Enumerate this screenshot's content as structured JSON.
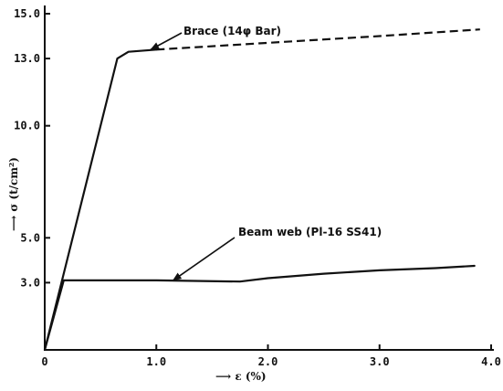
{
  "chart_data": {
    "type": "line",
    "title": "",
    "xlabel": "⟶ ε (%)",
    "ylabel": "⟶ σ (t/cm²)",
    "xlim": [
      0,
      4.0
    ],
    "ylim": [
      0,
      15.0
    ],
    "x_ticks": [
      0,
      1.0,
      2.0,
      3.0,
      4.0
    ],
    "x_tick_labels": [
      "0",
      "1.0",
      "2.0",
      "3.0",
      "4.0"
    ],
    "y_ticks": [
      3.0,
      5.0,
      10.0,
      13.0,
      15.0
    ],
    "y_tick_labels": [
      "3.0",
      "5.0",
      "10.0",
      "13.0",
      "15.0"
    ],
    "grid": false,
    "legend": "none",
    "series": [
      {
        "name": "Brace (14φ Bar)",
        "segments": [
          {
            "style": "solid",
            "points": [
              [
                0,
                0
              ],
              [
                0.65,
                13.0
              ],
              [
                0.75,
                13.3
              ],
              [
                1.0,
                13.4
              ]
            ]
          },
          {
            "style": "dashed",
            "points": [
              [
                1.0,
                13.4
              ],
              [
                2.0,
                13.7
              ],
              [
                3.0,
                14.0
              ],
              [
                3.9,
                14.3
              ]
            ]
          }
        ]
      },
      {
        "name": "Beam web (Pl-16 SS41)",
        "segments": [
          {
            "style": "solid",
            "points": [
              [
                0,
                0
              ],
              [
                0.17,
                3.1
              ],
              [
                1.0,
                3.1
              ],
              [
                1.75,
                3.05
              ],
              [
                2.0,
                3.2
              ],
              [
                2.5,
                3.4
              ],
              [
                3.0,
                3.55
              ],
              [
                3.5,
                3.65
              ],
              [
                3.85,
                3.75
              ]
            ]
          }
        ]
      }
    ],
    "annotations": [
      {
        "text": "Brace (14φ Bar)",
        "series": 0,
        "arrow_to": [
          0.95,
          13.4
        ]
      },
      {
        "text": "Beam web (Pl-16  SS41)",
        "series": 1,
        "arrow_to": [
          1.15,
          3.1
        ]
      }
    ]
  }
}
